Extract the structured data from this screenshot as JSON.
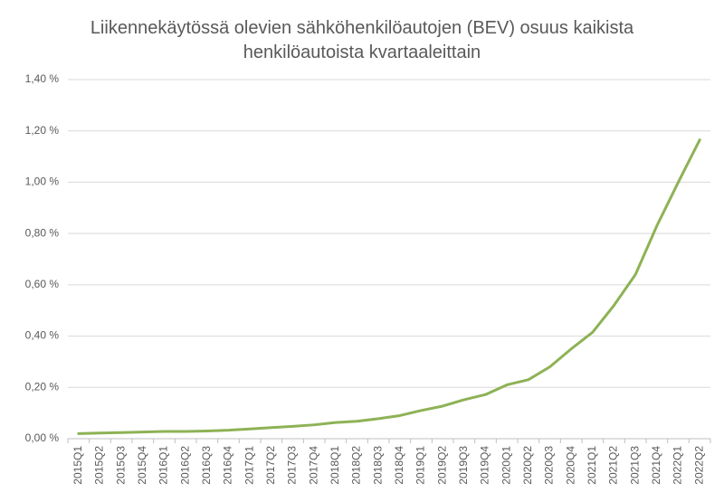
{
  "chart_data": {
    "type": "line",
    "title": "Liikennekäytössä olevien sähköhenkilöautojen (BEV) osuus kaikista henkilöautoista kvartaaleittain",
    "categories": [
      "2015Q1",
      "2015Q2",
      "2015Q3",
      "2015Q4",
      "2016Q1",
      "2016Q2",
      "2016Q3",
      "2016Q4",
      "2017Q1",
      "2017Q2",
      "2017Q3",
      "2017Q4",
      "2018Q1",
      "2018Q2",
      "2018Q3",
      "2018Q4",
      "2019Q1",
      "2019Q2",
      "2019Q3",
      "2019Q4",
      "2020Q1",
      "2020Q2",
      "2020Q3",
      "2020Q4",
      "2021Q1",
      "2021Q2",
      "2021Q3",
      "2021Q4",
      "2022Q1",
      "2022Q2"
    ],
    "values": [
      0.02,
      0.022,
      0.024,
      0.026,
      0.028,
      0.028,
      0.03,
      0.033,
      0.038,
      0.043,
      0.048,
      0.054,
      0.063,
      0.068,
      0.078,
      0.09,
      0.11,
      0.127,
      0.152,
      0.172,
      0.21,
      0.23,
      0.28,
      0.35,
      0.415,
      0.52,
      0.64,
      0.83,
      1.0,
      1.165
    ],
    "color": "#8db255",
    "ylim": [
      0,
      1.4
    ],
    "yticks": [
      {
        "value": 0,
        "label": "0,00 %"
      },
      {
        "value": 0.2,
        "label": "0,20 %"
      },
      {
        "value": 0.4,
        "label": "0,40 %"
      },
      {
        "value": 0.6,
        "label": "0,60 %"
      },
      {
        "value": 0.8,
        "label": "0,80 %"
      },
      {
        "value": 1.0,
        "label": "1,00 %"
      },
      {
        "value": 1.2,
        "label": "1,20 %"
      },
      {
        "value": 1.4,
        "label": "1,40 %"
      }
    ],
    "grid": true
  }
}
